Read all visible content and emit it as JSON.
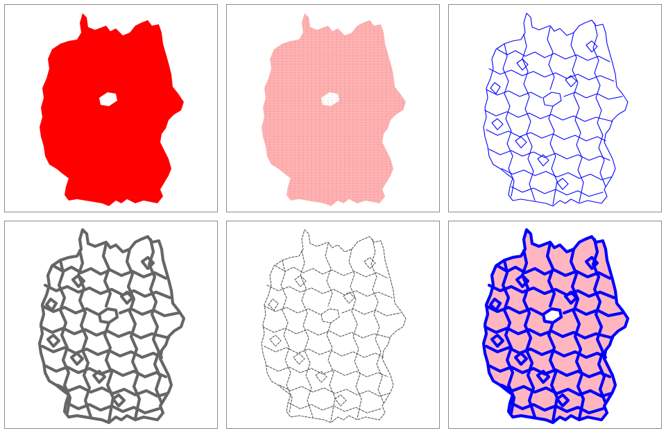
{
  "panels": [
    {
      "id": "solid-fill",
      "fill": "#ff0000",
      "fill_opacity": 1.0,
      "fill_texture": false,
      "stroke": "none",
      "stroke_opacity": 0,
      "stroke_dash": "none",
      "stroke_style": "none"
    },
    {
      "id": "light-fill",
      "fill": "#ffb0b0",
      "fill_opacity": 1.0,
      "fill_texture": true,
      "stroke": "none",
      "stroke_opacity": 0,
      "stroke_dash": "none",
      "stroke_style": "none"
    },
    {
      "id": "blue-borders",
      "fill": "none",
      "fill_opacity": 0,
      "fill_texture": false,
      "stroke": "#0000ff",
      "stroke_opacity": 1.0,
      "stroke_dash": "none",
      "stroke_style": "thin"
    },
    {
      "id": "grey-thick-borders",
      "fill": "none",
      "fill_opacity": 0,
      "fill_texture": false,
      "stroke": "#666666",
      "stroke_opacity": 1.0,
      "stroke_dash": "none",
      "stroke_style": "thick"
    },
    {
      "id": "grey-dashed-borders",
      "fill": "none",
      "fill_opacity": 0,
      "fill_texture": false,
      "stroke": "#555555",
      "stroke_opacity": 1.0,
      "stroke_dash": "dashed",
      "stroke_style": "thin"
    },
    {
      "id": "pink-fill-blue-thick-borders",
      "fill": "#ffb6c1",
      "fill_opacity": 1.0,
      "fill_texture": false,
      "stroke": "#0000ff",
      "stroke_opacity": 1.0,
      "stroke_dash": "none",
      "stroke_style": "thick"
    }
  ]
}
